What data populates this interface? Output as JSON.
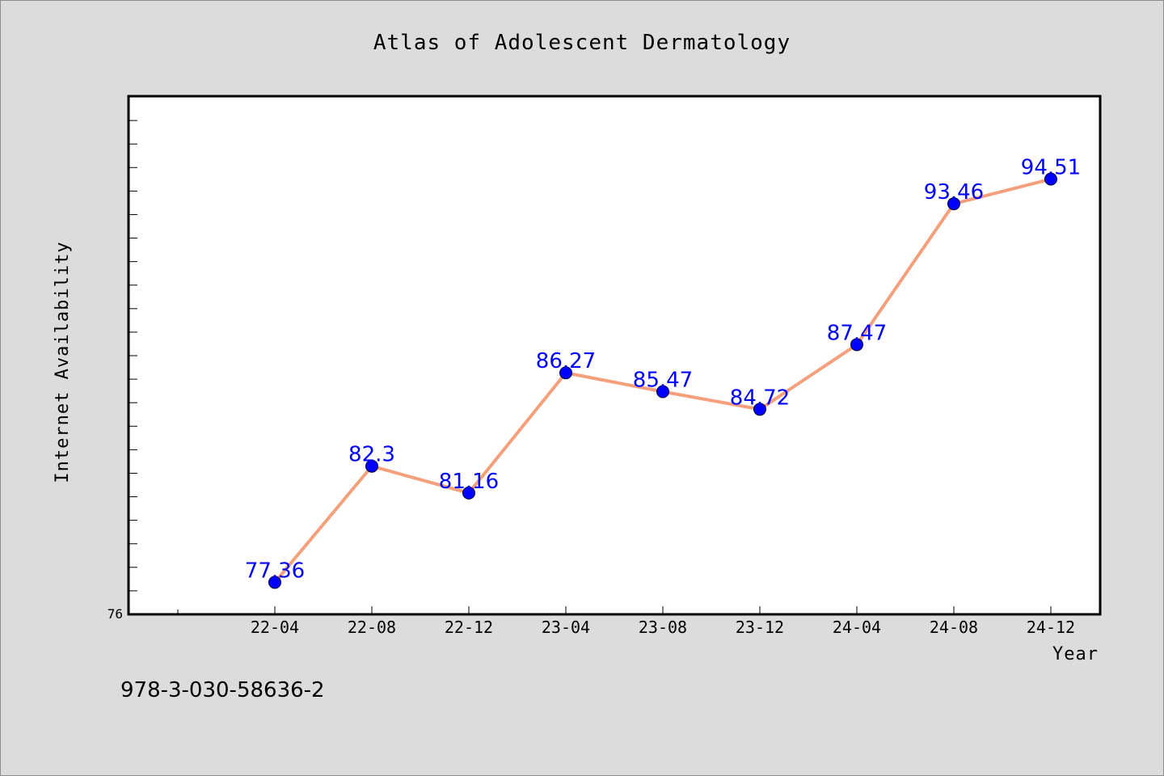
{
  "chart_data": {
    "type": "line",
    "title": "Atlas of Adolescent Dermatology",
    "xlabel": "Year",
    "ylabel": "Internet Availability",
    "categories": [
      "22-04",
      "22-08",
      "22-12",
      "23-04",
      "23-08",
      "23-12",
      "24-04",
      "24-08",
      "24-12"
    ],
    "series": [
      {
        "values": [
          77.36,
          82.3,
          81.16,
          86.27,
          85.47,
          84.72,
          87.47,
          93.46,
          94.51
        ]
      }
    ],
    "ylim": [
      76,
      98
    ],
    "y_tick_labels": [
      "76"
    ],
    "grid": false,
    "colors": {
      "line": "#f4a07c",
      "marker": "#0000ff",
      "label": "#0000ff",
      "plot_background": "#ffffff",
      "page_background": "#dcdcdc"
    }
  },
  "footer": {
    "isbn": "978-3-030-58636-2"
  }
}
